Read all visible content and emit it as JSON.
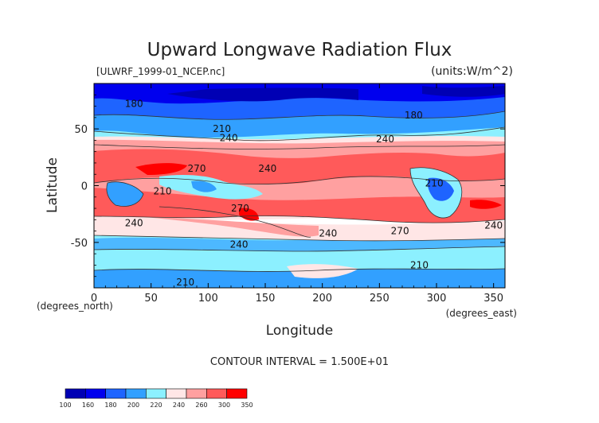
{
  "chart_data": {
    "type": "heatmap",
    "title": "Upward Longwave Radiation Flux",
    "file_label": "[ULWRF_1999-01_NCEP.nc]",
    "units_label": "(units:W/m^2)",
    "xlabel": "Longitude",
    "ylabel": "Latitude",
    "x_unit_label": "(degrees_east)",
    "y_unit_label": "(degrees_north)",
    "xlim": [
      0,
      360
    ],
    "ylim": [
      -90,
      90
    ],
    "x_ticks": [
      "0",
      "50",
      "100",
      "150",
      "200",
      "250",
      "300",
      "350"
    ],
    "x_tick_values": [
      0,
      50,
      100,
      150,
      200,
      250,
      300,
      350
    ],
    "y_ticks": [
      "50",
      "0",
      "-50"
    ],
    "y_tick_values": [
      50,
      0,
      -50
    ],
    "contour_interval_text": "CONTOUR INTERVAL = 1.500E+01",
    "contour_labels": [
      {
        "text": "180",
        "lon": 35,
        "lat": 72
      },
      {
        "text": "210",
        "lon": 112,
        "lat": 50
      },
      {
        "text": "240",
        "lon": 118,
        "lat": 42
      },
      {
        "text": "270",
        "lon": 90,
        "lat": 15
      },
      {
        "text": "240",
        "lon": 152,
        "lat": 15
      },
      {
        "text": "210",
        "lon": 60,
        "lat": -5
      },
      {
        "text": "240",
        "lon": 35,
        "lat": -33
      },
      {
        "text": "270",
        "lon": 128,
        "lat": -20
      },
      {
        "text": "240",
        "lon": 127,
        "lat": -52
      },
      {
        "text": "240",
        "lon": 205,
        "lat": -42
      },
      {
        "text": "270",
        "lon": 268,
        "lat": -40
      },
      {
        "text": "180",
        "lon": 280,
        "lat": 62
      },
      {
        "text": "240",
        "lon": 255,
        "lat": 41
      },
      {
        "text": "210",
        "lon": 298,
        "lat": 2
      },
      {
        "text": "240",
        "lon": 350,
        "lat": -35
      },
      {
        "text": "210",
        "lon": 285,
        "lat": -70
      },
      {
        "text": "210",
        "lon": 80,
        "lat": -85
      },
      {
        "text": "210",
        "lon": 192,
        "lat": -99
      }
    ],
    "colorbar": {
      "levels": [
        "100",
        "160",
        "180",
        "200",
        "220",
        "240",
        "260",
        "300",
        "350"
      ],
      "colors": [
        "#0000b4",
        "#0000ee",
        "#1e64ff",
        "#32a0ff",
        "#8cf0ff",
        "#ffe6e6",
        "#ffa0a0",
        "#ff5a5a",
        "#ff0000"
      ]
    },
    "grid": false
  }
}
